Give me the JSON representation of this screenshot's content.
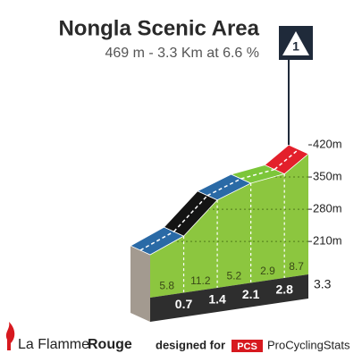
{
  "chart_data": {
    "type": "climb-profile",
    "title": "Nongla Scenic Area",
    "subtitle": "469 m - 3.3 Km at 6.6 %",
    "category": "1",
    "distances": [
      0.7,
      1.4,
      2.1,
      2.8,
      3.3
    ],
    "gradients": [
      5.8,
      11.2,
      5.2,
      2.9,
      8.7
    ],
    "colors": [
      "#2a6aa6",
      "#141414",
      "#2a6aa6",
      "#7cc63a",
      "#e3202b"
    ],
    "xlim": [
      0,
      3.3
    ],
    "ylim": [
      150,
      490
    ],
    "yticks": [
      {
        "value": 210,
        "label": "210m"
      },
      {
        "value": 280,
        "label": "280m"
      },
      {
        "value": 350,
        "label": "350m"
      },
      {
        "value": 420,
        "label": "420m"
      }
    ]
  },
  "footer": {
    "brand_light": "La Flamme",
    "brand_bold": "Rouge",
    "designed_for": "designed for",
    "pcs": "PCS",
    "pcs_name": "ProCyclingStats"
  }
}
